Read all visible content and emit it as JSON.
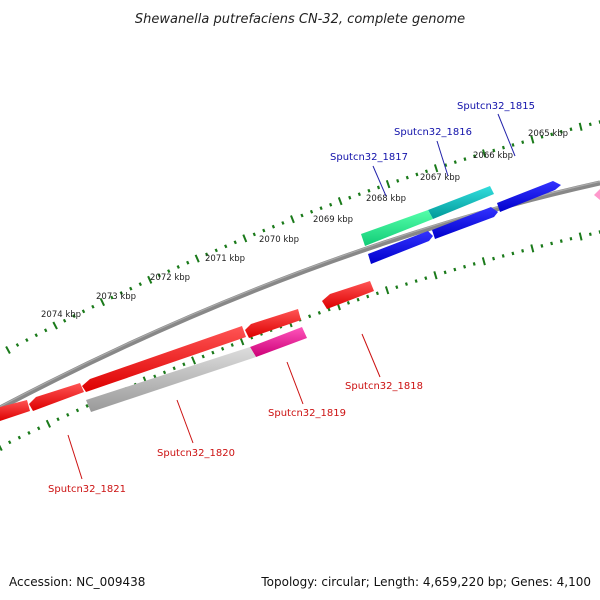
{
  "title": "Shewanella putrefaciens CN-32, complete genome",
  "footer": {
    "accession": "Accession: NC_009438",
    "topology": "Topology: circular; Length: 4,659,220 bp; Genes: 4,100"
  },
  "scale_labels": [
    "2065 kbp",
    "2066 kbp",
    "2067 kbp",
    "2068 kbp",
    "2069 kbp",
    "2070 kbp",
    "2071 kbp",
    "2072 kbp",
    "2073 kbp",
    "2074 kbp"
  ],
  "gene_labels": [
    {
      "text": "Sputcn32_1815",
      "color": "#1111aa"
    },
    {
      "text": "Sputcn32_1816",
      "color": "#1111aa"
    },
    {
      "text": "Sputcn32_1817",
      "color": "#1111aa"
    },
    {
      "text": "Sputcn32_1818",
      "color": "#cc1111"
    },
    {
      "text": "Sputcn32_1819",
      "color": "#cc1111"
    },
    {
      "text": "Sputcn32_1820",
      "color": "#cc1111"
    },
    {
      "text": "Sputcn32_1821",
      "color": "#cc1111"
    }
  ],
  "colors": {
    "backbone": "#777777",
    "scale_ticks": "#1a7a1a",
    "forward_gene": "#0000ee",
    "reverse_gene": "#ee0000",
    "highlight_green": "#22dd88",
    "highlight_cyan": "#11bbbb",
    "highlight_magenta": "#ee2299",
    "highlight_gray": "#bbbbbb",
    "pink_edge": "#ff99cc"
  }
}
